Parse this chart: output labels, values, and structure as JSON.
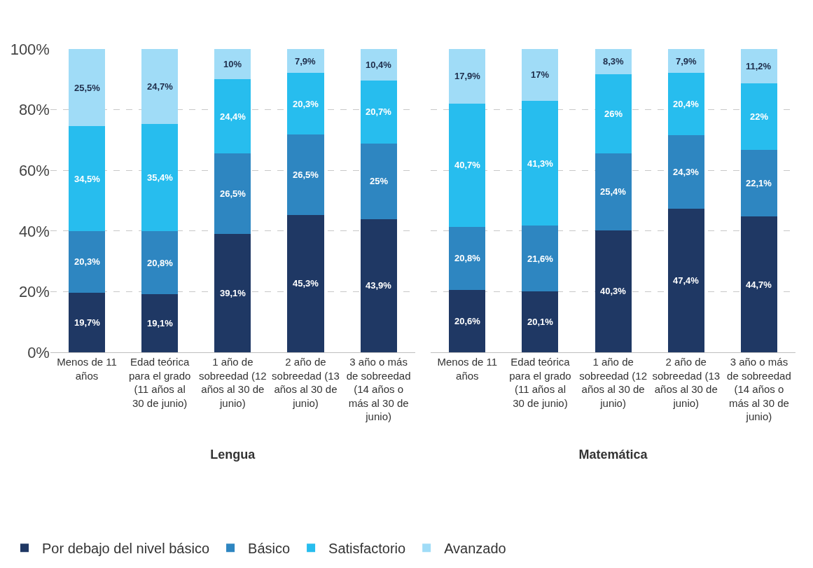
{
  "chart_data": [
    {
      "type": "bar",
      "stacked": true,
      "xlabel": "Lengua",
      "categories": [
        "Menos de 11 años",
        "Edad teórica para el grado (11 años al 30 de junio)",
        "1 año de sobreedad (12 años al 30 de junio)",
        "2 año de sobreedad (13 años al 30 de junio)",
        "3 año o más de sobreedad (14 años o más al 30 de junio)"
      ],
      "series": [
        {
          "name": "Por debajo del nivel básico",
          "color": "#1f3864",
          "values": [
            19.7,
            19.1,
            39.1,
            45.3,
            43.9
          ],
          "value_labels": [
            "19,7%",
            "19,1%",
            "39,1%",
            "45,3%",
            "43,9%"
          ]
        },
        {
          "name": "Básico",
          "color": "#2e86c1",
          "values": [
            20.3,
            20.8,
            26.5,
            26.5,
            25
          ],
          "value_labels": [
            "20,3%",
            "20,8%",
            "26,5%",
            "26,5%",
            "25%"
          ]
        },
        {
          "name": "Satisfactorio",
          "color": "#27bdee",
          "values": [
            34.5,
            35.4,
            24.4,
            20.3,
            20.7
          ],
          "value_labels": [
            "34,5%",
            "35,4%",
            "24,4%",
            "20,3%",
            "20,7%"
          ]
        },
        {
          "name": "Avanzado",
          "color": "#a0dcf7",
          "values": [
            25.5,
            24.7,
            10,
            7.9,
            10.4
          ],
          "value_labels": [
            "25,5%",
            "24,7%",
            "10%",
            "7,9%",
            "10,4%"
          ]
        }
      ],
      "ylim": [
        0,
        100
      ],
      "yticks": [
        {
          "value": 0,
          "label": "0%"
        },
        {
          "value": 20,
          "label": "20%"
        },
        {
          "value": 40,
          "label": "40%"
        },
        {
          "value": 60,
          "label": "60%"
        },
        {
          "value": 80,
          "label": "80%"
        },
        {
          "value": 100,
          "label": "100%"
        }
      ],
      "grid": "y",
      "legend": "bottom"
    },
    {
      "type": "bar",
      "stacked": true,
      "xlabel": "Matemática",
      "categories": [
        "Menos de 11 años",
        "Edad teórica para el grado (11 años al 30 de junio)",
        "1 año de sobreedad (12 años al 30 de junio)",
        "2 año de sobreedad (13 años al 30 de junio)",
        "3 año o más de sobreedad (14 años o más al 30 de junio)"
      ],
      "series": [
        {
          "color": "#1f3864",
          "values": [
            20.6,
            20.1,
            40.3,
            47.4,
            44.7
          ],
          "value_labels": [
            "20,6%",
            "20,1%",
            "40,3%",
            "47,4%",
            "44,7%"
          ]
        },
        {
          "color": "#2e86c1",
          "values": [
            20.8,
            21.6,
            25.4,
            24.3,
            22.1
          ],
          "value_labels": [
            "20,8%",
            "21,6%",
            "25,4%",
            "24,3%",
            "22,1%"
          ]
        },
        {
          "color": "#27bdee",
          "values": [
            40.7,
            41.3,
            26,
            20.4,
            22
          ],
          "value_labels": [
            "40,7%",
            "41,3%",
            "26%",
            "20,4%",
            "22%"
          ]
        },
        {
          "color": "#a0dcf7",
          "values": [
            17.9,
            17,
            8.3,
            7.9,
            11.2
          ],
          "value_labels": [
            "17,9%",
            "17%",
            "8,3%",
            "7,9%",
            "11,2%"
          ]
        }
      ],
      "ylim": [
        0,
        100
      ],
      "yticks": [
        0,
        20,
        40,
        60,
        80,
        100
      ],
      "grid": "y",
      "tick_labels": "x"
    }
  ]
}
